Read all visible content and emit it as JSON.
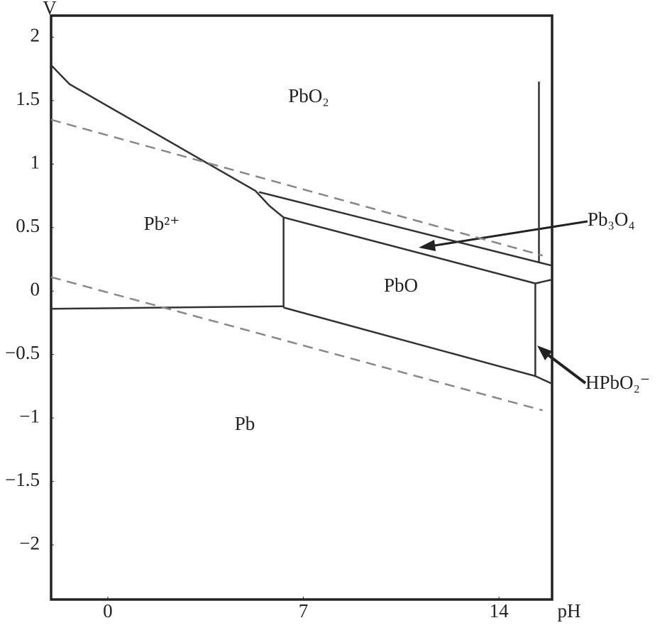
{
  "chart_data": {
    "type": "line",
    "x_label": "pH",
    "y_label": "V",
    "xlim": [
      -2.03,
      15.9
    ],
    "xticks": [
      0,
      7,
      14
    ],
    "ylim": [
      -2.43,
      2.17
    ],
    "yticks": [
      2,
      1.5,
      1,
      0.5,
      0,
      {
        "value": -0.5,
        "label": "−0.5"
      },
      {
        "value": -1,
        "label": "−1"
      },
      {
        "value": -1.5,
        "label": "−1.5"
      },
      {
        "value": -2,
        "label": "−2"
      }
    ],
    "series": [
      {
        "color": "#333333",
        "style": "solid",
        "x": [
          -2.03,
          -1.37,
          5.28,
          5.79,
          6.29
        ],
        "values": [
          1.78,
          1.63,
          0.79,
          0.67,
          0.58
        ]
      },
      {
        "color": "#333333",
        "style": "solid",
        "x": [
          6.29,
          6.29
        ],
        "values": [
          0.58,
          -0.13
        ]
      },
      {
        "color": "#333333",
        "style": "solid",
        "x": [
          -2.03,
          6.29
        ],
        "values": [
          -0.14,
          -0.12
        ]
      },
      {
        "color": "#333333",
        "style": "solid",
        "x": [
          6.29,
          15.3,
          15.3
        ],
        "values": [
          -0.13,
          -0.67,
          0.06
        ]
      },
      {
        "color": "#333333",
        "style": "solid",
        "x": [
          6.29,
          15.3
        ],
        "values": [
          0.58,
          0.06
        ]
      },
      {
        "color": "#333333",
        "style": "solid",
        "x": [
          5.41,
          15.9
        ],
        "values": [
          0.78,
          0.2
        ]
      },
      {
        "color": "#333333",
        "style": "solid",
        "x": [
          15.3,
          15.9
        ],
        "values": [
          -0.67,
          -0.73
        ]
      },
      {
        "color": "#333333",
        "style": "solid",
        "x": [
          15.43,
          15.43
        ],
        "values": [
          1.65,
          0.22
        ]
      },
      {
        "color": "#333333",
        "style": "solid",
        "x": [
          15.3,
          15.9
        ],
        "values": [
          0.06,
          0.09
        ]
      },
      {
        "color": "#888888",
        "style": "dashed",
        "x": [
          -2.03,
          15.56
        ],
        "values": [
          1.35,
          0.28
        ]
      },
      {
        "color": "#888888",
        "style": "dashed",
        "x": [
          -2.03,
          15.56
        ],
        "values": [
          0.11,
          -0.94
        ]
      }
    ],
    "annotations": [
      "PbO₂",
      "Pb²⁺",
      "PbO",
      "Pb",
      "Pb₃O₄",
      "HPbO₂⁻"
    ]
  }
}
